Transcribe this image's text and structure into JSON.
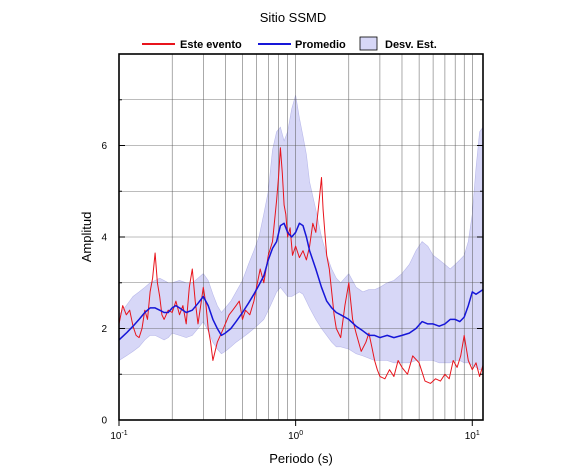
{
  "chart_data": {
    "type": "line",
    "title": "Sitio SSMD",
    "xlabel": "Periodo (s)",
    "ylabel": "Amplitud",
    "xscale": "log",
    "xlim": [
      0.1,
      11.5
    ],
    "ylim": [
      0,
      8
    ],
    "grid": "x-major-and-minor",
    "legend_position": "top",
    "x_ticks": [
      {
        "value": 0.1,
        "base": "10",
        "exp": "-1"
      },
      {
        "value": 1,
        "base": "10",
        "exp": "0"
      },
      {
        "value": 10,
        "base": "10",
        "exp": "1"
      }
    ],
    "y_ticks": [
      {
        "value": 0,
        "label": "0"
      },
      {
        "value": 2,
        "label": "2"
      },
      {
        "value": 4,
        "label": "4"
      },
      {
        "value": 6,
        "label": "6"
      }
    ],
    "colors": {
      "event": "#e8141c",
      "mean": "#1616d8",
      "band_fill": "#d7d7f7",
      "band_edge": "#b9b9ea"
    },
    "legend": [
      {
        "label": "Este evento",
        "kind": "line",
        "color": "#e8141c"
      },
      {
        "label": "Promedio",
        "kind": "line",
        "color": "#1616d8"
      },
      {
        "label": "Desv. Est.",
        "kind": "patch",
        "color": "#d7d7f7"
      }
    ],
    "series": [
      {
        "name": "Este evento",
        "x": [
          0.1,
          0.105,
          0.11,
          0.115,
          0.12,
          0.125,
          0.13,
          0.135,
          0.14,
          0.145,
          0.15,
          0.155,
          0.16,
          0.165,
          0.17,
          0.175,
          0.18,
          0.19,
          0.2,
          0.21,
          0.22,
          0.23,
          0.24,
          0.25,
          0.26,
          0.27,
          0.28,
          0.29,
          0.3,
          0.31,
          0.32,
          0.33,
          0.34,
          0.36,
          0.38,
          0.4,
          0.42,
          0.44,
          0.46,
          0.48,
          0.5,
          0.52,
          0.55,
          0.58,
          0.6,
          0.63,
          0.66,
          0.7,
          0.74,
          0.78,
          0.8,
          0.82,
          0.84,
          0.86,
          0.88,
          0.9,
          0.93,
          0.96,
          1.0,
          1.05,
          1.1,
          1.15,
          1.2,
          1.25,
          1.3,
          1.35,
          1.4,
          1.43,
          1.47,
          1.5,
          1.55,
          1.6,
          1.65,
          1.7,
          1.8,
          1.9,
          2.0,
          2.1,
          2.2,
          2.35,
          2.5,
          2.6,
          2.7,
          2.8,
          2.9,
          3.0,
          3.2,
          3.4,
          3.6,
          3.8,
          4.0,
          4.3,
          4.6,
          5.0,
          5.4,
          5.8,
          6.2,
          6.6,
          7.0,
          7.4,
          7.8,
          8.2,
          8.6,
          9.0,
          9.5,
          10.0,
          10.5,
          11.0,
          11.5
        ],
        "y": [
          2.1,
          2.5,
          2.3,
          2.4,
          2.05,
          1.85,
          1.8,
          2.0,
          2.4,
          2.2,
          2.8,
          3.1,
          3.65,
          3.0,
          2.7,
          2.3,
          2.2,
          2.4,
          2.35,
          2.6,
          2.3,
          2.5,
          2.1,
          2.9,
          3.3,
          2.6,
          2.1,
          2.5,
          2.9,
          2.55,
          2.0,
          1.7,
          1.3,
          1.7,
          1.9,
          2.1,
          2.3,
          2.4,
          2.5,
          2.6,
          2.2,
          2.4,
          2.3,
          2.6,
          2.9,
          3.3,
          3.0,
          3.6,
          3.9,
          4.8,
          5.3,
          5.95,
          5.4,
          4.7,
          4.5,
          4.0,
          4.2,
          3.6,
          3.8,
          3.55,
          3.7,
          3.5,
          3.8,
          4.3,
          4.1,
          4.7,
          5.3,
          4.6,
          4.0,
          3.6,
          3.3,
          2.8,
          2.3,
          2.0,
          1.8,
          2.5,
          3.0,
          2.2,
          1.9,
          1.5,
          1.7,
          1.9,
          1.6,
          1.3,
          1.1,
          0.95,
          0.9,
          1.1,
          0.95,
          1.3,
          1.15,
          1.0,
          1.4,
          1.25,
          0.85,
          0.8,
          0.9,
          0.85,
          1.0,
          0.9,
          1.3,
          1.15,
          1.4,
          1.85,
          1.3,
          1.1,
          1.25,
          0.95,
          1.2
        ]
      },
      {
        "name": "Promedio",
        "x": [
          0.1,
          0.11,
          0.12,
          0.13,
          0.14,
          0.15,
          0.16,
          0.17,
          0.18,
          0.19,
          0.2,
          0.21,
          0.22,
          0.24,
          0.26,
          0.28,
          0.3,
          0.32,
          0.34,
          0.36,
          0.38,
          0.4,
          0.43,
          0.46,
          0.5,
          0.54,
          0.58,
          0.62,
          0.66,
          0.7,
          0.74,
          0.78,
          0.82,
          0.86,
          0.9,
          0.95,
          1.0,
          1.05,
          1.1,
          1.15,
          1.2,
          1.3,
          1.4,
          1.5,
          1.6,
          1.7,
          1.8,
          2.0,
          2.2,
          2.4,
          2.6,
          2.8,
          3.0,
          3.3,
          3.6,
          4.0,
          4.4,
          4.8,
          5.2,
          5.6,
          6.0,
          6.5,
          7.0,
          7.5,
          8.0,
          8.5,
          9.0,
          9.5,
          10.0,
          10.5,
          11.0,
          11.5
        ],
        "y": [
          1.75,
          1.9,
          2.05,
          2.2,
          2.35,
          2.45,
          2.45,
          2.4,
          2.35,
          2.35,
          2.45,
          2.5,
          2.45,
          2.35,
          2.4,
          2.55,
          2.7,
          2.5,
          2.2,
          2.0,
          1.85,
          1.9,
          2.0,
          2.15,
          2.35,
          2.55,
          2.75,
          2.95,
          3.15,
          3.5,
          3.75,
          3.9,
          4.25,
          4.3,
          4.1,
          4.0,
          4.1,
          4.3,
          4.25,
          4.0,
          3.7,
          3.3,
          2.9,
          2.6,
          2.45,
          2.35,
          2.3,
          2.2,
          2.05,
          1.95,
          1.85,
          1.85,
          1.8,
          1.85,
          1.8,
          1.85,
          1.9,
          2.0,
          2.15,
          2.1,
          2.1,
          2.05,
          2.1,
          2.2,
          2.2,
          2.15,
          2.25,
          2.5,
          2.8,
          2.75,
          2.8,
          2.85
        ]
      }
    ],
    "band": {
      "name": "Desv. Est.",
      "x": [
        0.1,
        0.11,
        0.12,
        0.13,
        0.14,
        0.15,
        0.16,
        0.17,
        0.18,
        0.19,
        0.2,
        0.22,
        0.24,
        0.26,
        0.28,
        0.3,
        0.32,
        0.34,
        0.36,
        0.38,
        0.4,
        0.43,
        0.46,
        0.5,
        0.54,
        0.58,
        0.62,
        0.66,
        0.7,
        0.74,
        0.78,
        0.82,
        0.86,
        0.9,
        0.95,
        1.0,
        1.05,
        1.1,
        1.15,
        1.2,
        1.3,
        1.4,
        1.5,
        1.6,
        1.7,
        1.8,
        2.0,
        2.2,
        2.4,
        2.6,
        2.8,
        3.0,
        3.3,
        3.6,
        4.0,
        4.4,
        4.8,
        5.2,
        5.6,
        6.0,
        6.5,
        7.0,
        7.5,
        8.0,
        8.5,
        9.0,
        9.5,
        10.0,
        10.5,
        11.0,
        11.5
      ],
      "upper": [
        2.3,
        2.5,
        2.7,
        2.8,
        2.9,
        3.0,
        3.05,
        3.1,
        3.05,
        3.0,
        3.0,
        3.05,
        3.0,
        3.0,
        3.1,
        3.2,
        3.05,
        2.75,
        2.5,
        2.35,
        2.45,
        2.6,
        2.8,
        3.05,
        3.4,
        3.7,
        4.0,
        4.5,
        5.0,
        5.9,
        6.3,
        6.4,
        6.1,
        6.3,
        6.8,
        7.1,
        6.6,
        6.2,
        5.8,
        5.2,
        4.6,
        4.0,
        3.6,
        3.3,
        3.1,
        3.0,
        3.2,
        2.9,
        2.8,
        2.85,
        2.85,
        2.9,
        3.0,
        3.05,
        3.2,
        3.4,
        3.7,
        3.9,
        3.8,
        3.6,
        3.5,
        3.4,
        3.3,
        3.4,
        3.5,
        3.6,
        3.9,
        4.5,
        5.5,
        6.3,
        6.4
      ],
      "lower": [
        1.3,
        1.4,
        1.5,
        1.6,
        1.75,
        1.85,
        1.85,
        1.8,
        1.75,
        1.8,
        1.9,
        1.85,
        1.8,
        1.85,
        2.0,
        2.15,
        1.95,
        1.7,
        1.55,
        1.45,
        1.5,
        1.6,
        1.7,
        1.8,
        1.9,
        2.0,
        2.1,
        2.2,
        2.4,
        2.6,
        2.8,
        2.9,
        2.8,
        2.7,
        2.7,
        2.75,
        2.8,
        2.75,
        2.6,
        2.45,
        2.2,
        2.0,
        1.85,
        1.7,
        1.6,
        1.6,
        1.55,
        1.45,
        1.4,
        1.35,
        1.3,
        1.3,
        1.3,
        1.25,
        1.25,
        1.25,
        1.3,
        1.3,
        1.3,
        1.3,
        1.25,
        1.25,
        1.25,
        1.3,
        1.3,
        1.25,
        1.25,
        1.2,
        1.15,
        1.1,
        1.1
      ]
    }
  }
}
